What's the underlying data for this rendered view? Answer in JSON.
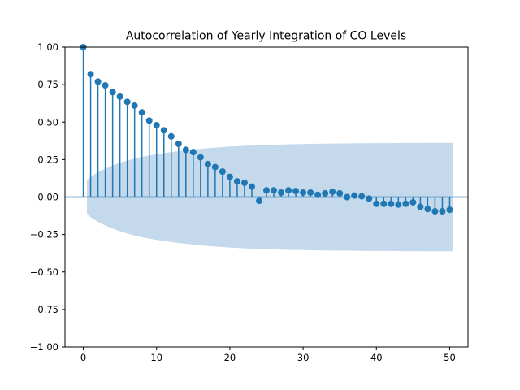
{
  "chart_data": {
    "type": "scatter",
    "title": "Autocorrelation of Yearly Integration of CO Levels",
    "xlabel": "",
    "ylabel": "",
    "xlim": [
      -2.5,
      52.5
    ],
    "ylim": [
      -1.0,
      1.0
    ],
    "xticks": [
      0,
      10,
      20,
      30,
      40,
      50
    ],
    "yticks": [
      -1.0,
      -0.75,
      -0.5,
      -0.25,
      0.0,
      0.25,
      0.5,
      0.75,
      1.0
    ],
    "xtick_labels": [
      "0",
      "10",
      "20",
      "30",
      "40",
      "50"
    ],
    "ytick_labels": [
      "−1.00",
      "−0.75",
      "−0.50",
      "−0.25",
      "0.00",
      "0.25",
      "0.50",
      "0.75",
      "1.00"
    ],
    "grid": false,
    "legend": "none",
    "lags": [
      0,
      1,
      2,
      3,
      4,
      5,
      6,
      7,
      8,
      9,
      10,
      11,
      12,
      13,
      14,
      15,
      16,
      17,
      18,
      19,
      20,
      21,
      22,
      23,
      24,
      25,
      26,
      27,
      28,
      29,
      30,
      31,
      32,
      33,
      34,
      35,
      36,
      37,
      38,
      39,
      40,
      41,
      42,
      43,
      44,
      45,
      46,
      47,
      48,
      49,
      50
    ],
    "acf": [
      1.0,
      0.82,
      0.77,
      0.745,
      0.7,
      0.67,
      0.635,
      0.61,
      0.565,
      0.51,
      0.48,
      0.445,
      0.405,
      0.355,
      0.315,
      0.3,
      0.265,
      0.22,
      0.2,
      0.17,
      0.135,
      0.105,
      0.095,
      0.07,
      -0.025,
      0.045,
      0.045,
      0.03,
      0.045,
      0.04,
      0.03,
      0.03,
      0.015,
      0.025,
      0.035,
      0.025,
      0.0,
      0.01,
      0.005,
      -0.01,
      -0.045,
      -0.045,
      -0.045,
      -0.05,
      -0.045,
      -0.035,
      -0.065,
      -0.08,
      -0.095,
      -0.095,
      -0.085
    ],
    "confidence_band": {
      "lags": [
        0.5,
        1,
        2,
        3,
        4,
        5,
        6,
        7,
        8,
        10,
        12,
        14,
        16,
        18,
        20,
        22,
        24,
        26,
        28,
        30,
        32,
        34,
        36,
        38,
        40,
        42,
        44,
        46,
        48,
        50,
        50.5
      ],
      "upper": [
        0.11,
        0.135,
        0.165,
        0.19,
        0.21,
        0.228,
        0.243,
        0.257,
        0.268,
        0.286,
        0.3,
        0.312,
        0.322,
        0.33,
        0.337,
        0.342,
        0.346,
        0.349,
        0.352,
        0.354,
        0.356,
        0.357,
        0.358,
        0.359,
        0.36,
        0.36,
        0.361,
        0.361,
        0.362,
        0.362,
        0.362
      ]
    },
    "colors": {
      "stem": "#1f77b4",
      "marker": "#1f77b4",
      "band": "#c4d9eb",
      "zero_line": "#1f77b4"
    }
  }
}
